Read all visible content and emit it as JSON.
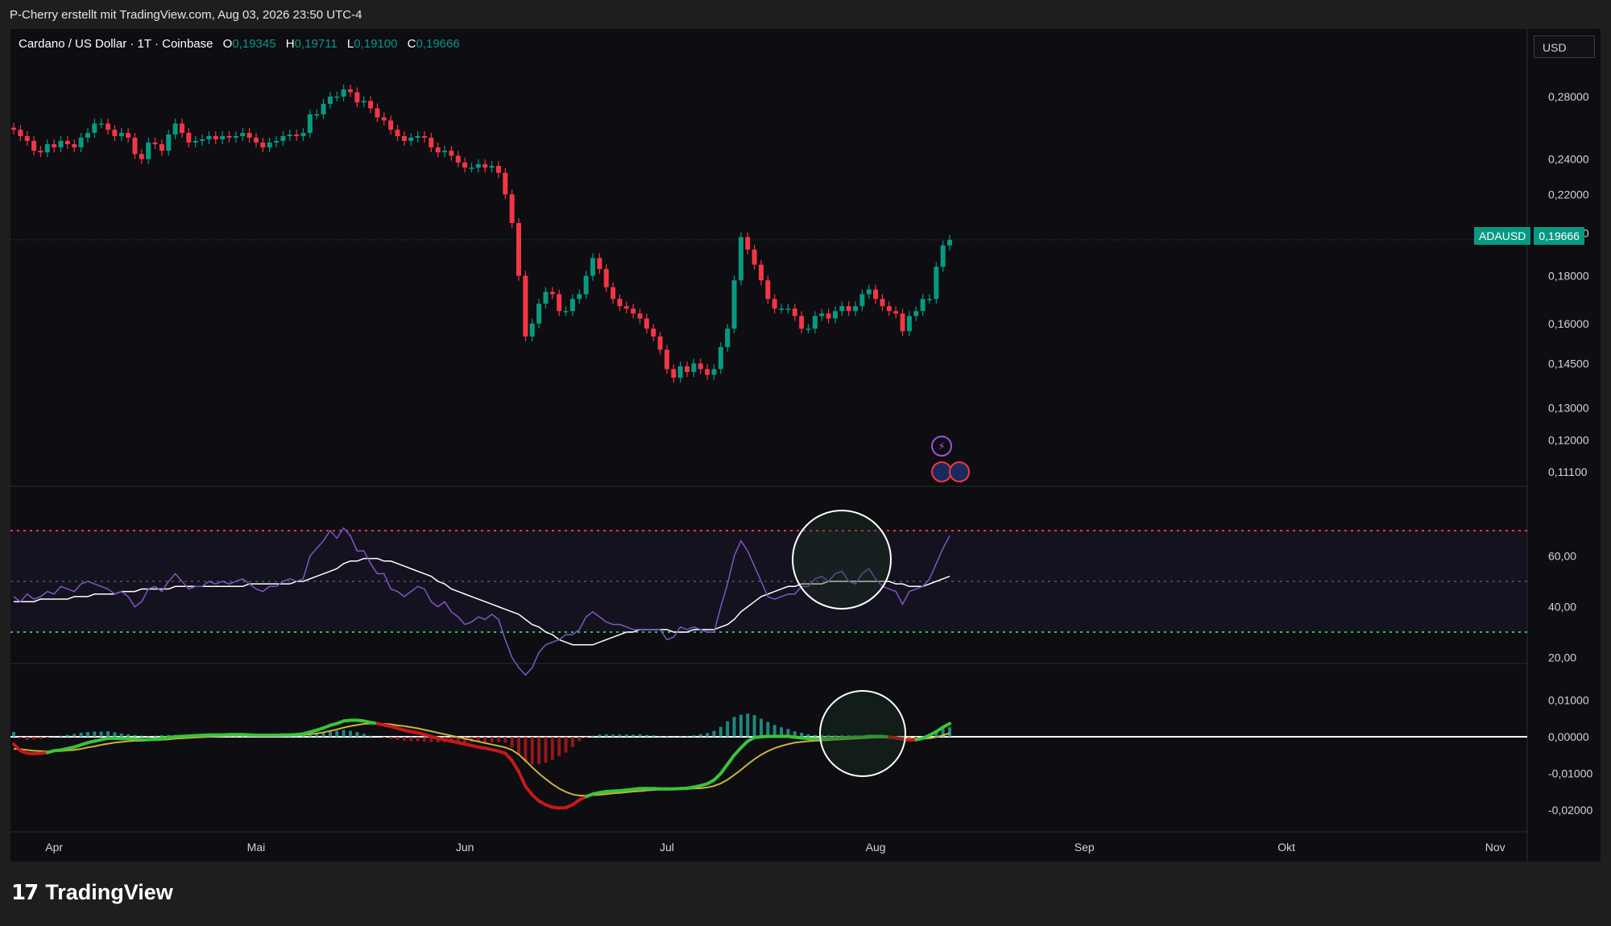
{
  "header": {
    "credit": "P-Cherry erstellt mit TradingView.com, Aug 03, 2026 23:50 UTC-4"
  },
  "legend": {
    "title": "Cardano / US Dollar · 1T · Coinbase",
    "open_label": "O",
    "open": "0,19345",
    "high_label": "H",
    "high": "0,19711",
    "low_label": "L",
    "low": "0,19100",
    "close_label": "C",
    "close": "0,19666"
  },
  "currency_button": "USD",
  "price_tag": {
    "symbol": "ADAUSD",
    "value": "0,19666"
  },
  "footer": {
    "brand": "TradingView"
  },
  "colors": {
    "up": "#089981",
    "down": "#f23645",
    "rsi": "#7e57c2",
    "rsi_ma": "#ffffff",
    "background": "#0d0d12"
  },
  "chart_data": [
    {
      "type": "candlestick",
      "title": "Cardano / US Dollar · 1T · Coinbase",
      "y_scale": "log",
      "y_ticks": [
        "0,28000",
        "0,24000",
        "0,22000",
        "0,20000",
        "0,18000",
        "0,16000",
        "0,14500",
        "0,13000",
        "0,12000",
        "0,11100"
      ],
      "y_tick_values": [
        0.28,
        0.24,
        0.22,
        0.2,
        0.18,
        0.16,
        0.145,
        0.13,
        0.12,
        0.111
      ],
      "x_ticks": [
        "Apr",
        "Mai",
        "Jun",
        "Jul",
        "Aug",
        "Sep",
        "Okt",
        "Nov"
      ],
      "x_tick_dates": [
        "2026-04-01",
        "2026-05-01",
        "2026-06-01",
        "2026-07-01",
        "2026-08-01",
        "2026-09-01",
        "2026-10-01",
        "2026-11-01"
      ],
      "start_date": "2026-03-26",
      "last_price": 0.19666,
      "closes": [
        0.258,
        0.254,
        0.251,
        0.245,
        0.244,
        0.249,
        0.247,
        0.251,
        0.249,
        0.247,
        0.253,
        0.256,
        0.262,
        0.262,
        0.258,
        0.254,
        0.256,
        0.253,
        0.243,
        0.24,
        0.25,
        0.249,
        0.245,
        0.255,
        0.262,
        0.256,
        0.25,
        0.251,
        0.252,
        0.254,
        0.252,
        0.254,
        0.253,
        0.254,
        0.256,
        0.253,
        0.25,
        0.247,
        0.25,
        0.251,
        0.254,
        0.255,
        0.254,
        0.256,
        0.268,
        0.268,
        0.275,
        0.28,
        0.28,
        0.285,
        0.283,
        0.276,
        0.277,
        0.272,
        0.266,
        0.264,
        0.258,
        0.254,
        0.251,
        0.253,
        0.254,
        0.253,
        0.247,
        0.244,
        0.245,
        0.242,
        0.238,
        0.235,
        0.235,
        0.237,
        0.235,
        0.236,
        0.232,
        0.22,
        0.205,
        0.18,
        0.155,
        0.16,
        0.168,
        0.173,
        0.172,
        0.165,
        0.165,
        0.17,
        0.172,
        0.18,
        0.188,
        0.183,
        0.175,
        0.17,
        0.167,
        0.166,
        0.164,
        0.162,
        0.158,
        0.155,
        0.15,
        0.143,
        0.14,
        0.144,
        0.142,
        0.145,
        0.143,
        0.141,
        0.143,
        0.151,
        0.158,
        0.178,
        0.198,
        0.192,
        0.185,
        0.178,
        0.17,
        0.166,
        0.166,
        0.166,
        0.163,
        0.158,
        0.158,
        0.163,
        0.164,
        0.162,
        0.165,
        0.167,
        0.165,
        0.167,
        0.172,
        0.174,
        0.17,
        0.167,
        0.165,
        0.164,
        0.157,
        0.163,
        0.165,
        0.17,
        0.17,
        0.184,
        0.194,
        0.19666
      ],
      "series": [
        {
          "name": "ADAUSD",
          "values": "closes"
        }
      ]
    },
    {
      "type": "line",
      "y_ticks": [
        "60,00",
        "40,00",
        "20,00"
      ],
      "y_tick_values": [
        60,
        40,
        20
      ],
      "levels": [
        70,
        50,
        30
      ],
      "rsi": [
        44,
        42,
        45,
        43,
        44,
        46,
        45,
        48,
        47,
        46,
        49,
        50,
        49,
        48,
        47,
        45,
        46,
        44,
        40,
        42,
        47,
        48,
        46,
        50,
        53,
        50,
        47,
        48,
        48,
        50,
        49,
        50,
        49,
        50,
        51,
        49,
        47,
        46,
        48,
        48,
        50,
        51,
        50,
        51,
        60,
        63,
        66,
        70,
        67,
        71,
        68,
        62,
        62,
        57,
        53,
        53,
        47,
        46,
        44,
        46,
        48,
        47,
        42,
        40,
        42,
        38,
        36,
        33,
        34,
        36,
        35,
        37,
        35,
        27,
        20,
        16,
        13,
        16,
        22,
        25,
        26,
        27,
        29,
        29,
        31,
        36,
        38,
        36,
        34,
        33,
        33,
        32,
        31,
        31,
        31,
        31,
        31,
        27,
        28,
        32,
        31,
        32,
        31,
        30,
        30,
        40,
        49,
        60,
        66,
        62,
        56,
        50,
        44,
        43,
        44,
        45,
        45,
        48,
        48,
        51,
        52,
        50,
        53,
        54,
        50,
        49,
        53,
        55,
        51,
        48,
        47,
        46,
        41,
        46,
        47,
        48,
        51,
        57,
        63,
        68
      ],
      "rsi_ma": [
        42,
        42,
        42,
        42,
        43,
        43,
        43,
        43,
        43,
        44,
        44,
        44,
        45,
        45,
        45,
        45,
        46,
        46,
        46,
        47,
        47,
        47,
        47,
        47,
        48,
        48,
        48,
        48,
        48,
        48,
        48,
        48,
        48,
        48,
        48,
        49,
        49,
        49,
        49,
        49,
        49,
        49,
        50,
        50,
        51,
        52,
        53,
        54,
        55,
        57,
        58,
        58,
        59,
        59,
        59,
        58,
        58,
        57,
        56,
        55,
        54,
        53,
        52,
        50,
        49,
        47,
        46,
        45,
        44,
        43,
        42,
        41,
        40,
        39,
        38,
        37,
        35,
        33,
        32,
        30,
        29,
        27,
        26,
        25,
        25,
        25,
        25,
        26,
        27,
        28,
        29,
        30,
        30,
        31,
        31,
        31,
        31,
        31,
        30,
        30,
        30,
        31,
        31,
        31,
        31,
        32,
        33,
        35,
        38,
        40,
        42,
        44,
        45,
        46,
        47,
        48,
        48,
        49,
        49,
        49,
        49,
        50,
        50,
        50,
        50,
        50,
        50,
        50,
        50,
        50,
        50,
        49,
        49,
        48,
        48,
        48,
        49,
        50,
        51,
        52
      ]
    },
    {
      "type": "line",
      "y_ticks": [
        "0,01000",
        "0,00000",
        "-0,01000",
        "-0,02000"
      ],
      "y_tick_values": [
        0.01,
        0,
        -0.01,
        -0.02
      ],
      "macd": [
        -0.002,
        -0.0038,
        -0.0045,
        -0.0046,
        -0.0045,
        -0.0043,
        -0.0038,
        -0.0036,
        -0.0032,
        -0.0028,
        -0.0022,
        -0.0016,
        -0.0012,
        -0.0008,
        -0.0004,
        -0.0004,
        -0.0005,
        -0.0005,
        -0.0006,
        -0.0008,
        -0.0008,
        -0.0006,
        -0.0004,
        -0.0002,
        0.0,
        0.0001,
        0.0002,
        0.0003,
        0.0004,
        0.0005,
        0.0005,
        0.0005,
        0.0006,
        0.0006,
        0.0006,
        0.0005,
        0.0004,
        0.0004,
        0.0004,
        0.0004,
        0.0005,
        0.0005,
        0.0006,
        0.0008,
        0.0013,
        0.0018,
        0.0024,
        0.0031,
        0.0036,
        0.0043,
        0.0045,
        0.0045,
        0.0043,
        0.0039,
        0.0036,
        0.0032,
        0.0028,
        0.0023,
        0.0018,
        0.0014,
        0.0011,
        0.0006,
        0.0001,
        -0.0004,
        -0.0008,
        -0.0012,
        -0.0016,
        -0.002,
        -0.0024,
        -0.0028,
        -0.0031,
        -0.0035,
        -0.0039,
        -0.0045,
        -0.0065,
        -0.0095,
        -0.0135,
        -0.0158,
        -0.0175,
        -0.0185,
        -0.0192,
        -0.0194,
        -0.0193,
        -0.0185,
        -0.0172,
        -0.0163,
        -0.0156,
        -0.0152,
        -0.0149,
        -0.0148,
        -0.0147,
        -0.0145,
        -0.0143,
        -0.0141,
        -0.0141,
        -0.0141,
        -0.0142,
        -0.0142,
        -0.0142,
        -0.0141,
        -0.014,
        -0.0137,
        -0.0133,
        -0.0128,
        -0.0118,
        -0.01,
        -0.0075,
        -0.005,
        -0.003,
        -0.0012,
        -0.0002,
        0.0,
        0.0001,
        0.0001,
        0.0001,
        0.0001,
        -0.0001,
        -0.0003,
        -0.0005,
        -0.0006,
        -0.0005,
        -0.0004,
        -0.0004,
        -0.0003,
        -0.0002,
        -0.0001,
        -0.0001,
        0.0001,
        0.0001,
        0.0001,
        -0.0001,
        -0.0003,
        -0.0007,
        -0.0009,
        -0.0008,
        -0.0004,
        0.0004,
        0.0014,
        0.0026,
        0.0036
      ],
      "signal": [
        -0.0033,
        -0.0034,
        -0.0036,
        -0.0038,
        -0.0039,
        -0.004,
        -0.0039,
        -0.0039,
        -0.0037,
        -0.0036,
        -0.0033,
        -0.0029,
        -0.0026,
        -0.0022,
        -0.0019,
        -0.0016,
        -0.0014,
        -0.0012,
        -0.0011,
        -0.0011,
        -0.001,
        -0.0009,
        -0.0008,
        -0.0007,
        -0.0005,
        -0.0004,
        -0.0003,
        -0.0002,
        -0.0001,
        0.0,
        0.0001,
        0.0002,
        0.0003,
        0.0003,
        0.0004,
        0.0004,
        0.0004,
        0.0004,
        0.0004,
        0.0004,
        0.0004,
        0.0004,
        0.0005,
        0.0005,
        0.0007,
        0.0009,
        0.0012,
        0.0016,
        0.002,
        0.0025,
        0.0029,
        0.0032,
        0.0035,
        0.0036,
        0.0036,
        0.0035,
        0.0034,
        0.0031,
        0.0029,
        0.0026,
        0.0023,
        0.0019,
        0.0015,
        0.0011,
        0.0007,
        0.0003,
        -0.0001,
        -0.0005,
        -0.0009,
        -0.0013,
        -0.0017,
        -0.0021,
        -0.0025,
        -0.0029,
        -0.0036,
        -0.0048,
        -0.0065,
        -0.0083,
        -0.01,
        -0.0115,
        -0.0129,
        -0.0141,
        -0.015,
        -0.0157,
        -0.016,
        -0.016,
        -0.0159,
        -0.0158,
        -0.0156,
        -0.0154,
        -0.0153,
        -0.0151,
        -0.0149,
        -0.0148,
        -0.0146,
        -0.0145,
        -0.0144,
        -0.0144,
        -0.0143,
        -0.0143,
        -0.0142,
        -0.0141,
        -0.014,
        -0.0138,
        -0.0134,
        -0.0127,
        -0.0117,
        -0.0104,
        -0.009,
        -0.0075,
        -0.0061,
        -0.0049,
        -0.0039,
        -0.0031,
        -0.0025,
        -0.002,
        -0.0016,
        -0.0014,
        -0.0012,
        -0.0011,
        -0.001,
        -0.0009,
        -0.0008,
        -0.0007,
        -0.0006,
        -0.0005,
        -0.0004,
        -0.0003,
        -0.0002,
        -0.0002,
        -0.0002,
        -0.0002,
        -0.0003,
        -0.0004,
        -0.0005,
        -0.0005,
        -0.0004,
        -0.0001,
        0.0004,
        0.001
      ]
    }
  ]
}
